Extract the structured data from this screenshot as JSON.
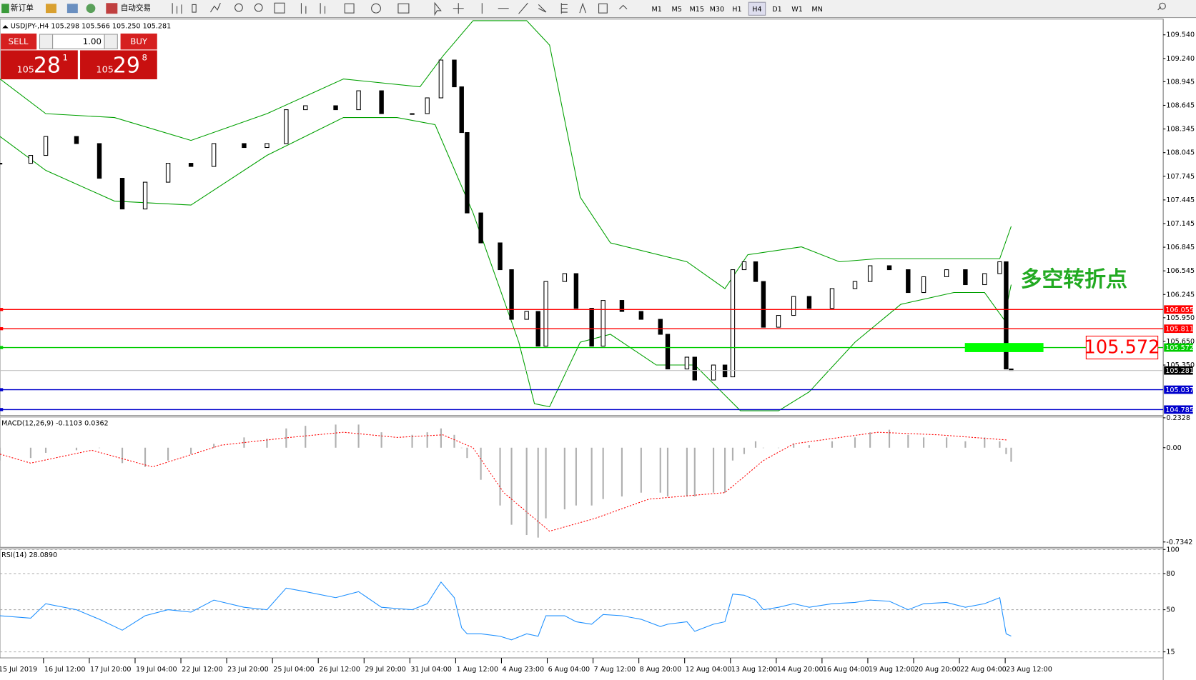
{
  "toolbar": {
    "new_order": "新订单",
    "auto_trading": "自动交易",
    "timeframes": [
      "M1",
      "M5",
      "M15",
      "M30",
      "H1",
      "H4",
      "D1",
      "W1",
      "MN"
    ],
    "active": "H4"
  },
  "trade_panel": {
    "sell": "SELL",
    "buy": "BUY",
    "lot": "1.00",
    "sell_big": "105",
    "sell_main": "28",
    "sell_sup": "1",
    "buy_big": "105",
    "buy_main": "29",
    "buy_sup": "8"
  },
  "chart_data": [
    {
      "type": "candlestick",
      "title": "USDJPY-,H4 105.298 105.566 105.250 105.281",
      "x": [
        0,
        6.7,
        10,
        16.7,
        21.7,
        26.7,
        31.7,
        36.7,
        41.7,
        46.7,
        53.3,
        58.3,
        62.5,
        66.7,
        73.3,
        78.3,
        83.3,
        90,
        93.3,
        96.3,
        99.2,
        100.8,
        102,
        105,
        109.2,
        111.7,
        115,
        117.5,
        119.2,
        123.3,
        125.8,
        129.2,
        131.7,
        135.8,
        140,
        144.2,
        145.8,
        150,
        151.7,
        155.8,
        158.3,
        160,
        162.5,
        165,
        166.7,
        170,
        173.3,
        176.7,
        181.7,
        186.7,
        190,
        194.2,
        198.3,
        201.7,
        206.7,
        210.8,
        215,
        218.3,
        219.7,
        220.8
      ],
      "close": [
        107.91,
        108.01,
        108.25,
        108.16,
        107.72,
        107.33,
        107.67,
        107.91,
        107.87,
        108.16,
        108.11,
        108.16,
        108.59,
        108.64,
        108.59,
        108.83,
        108.54,
        108.54,
        108.74,
        109.22,
        108.88,
        108.3,
        107.28,
        106.9,
        106.56,
        105.93,
        106.03,
        105.59,
        106.41,
        106.51,
        106.07,
        105.59,
        106.17,
        106.03,
        105.93,
        105.74,
        105.3,
        105.45,
        105.16,
        105.35,
        105.2,
        106.56,
        106.66,
        106.41,
        105.83,
        105.98,
        106.22,
        106.07,
        106.32,
        106.41,
        106.61,
        106.56,
        106.27,
        106.47,
        106.56,
        106.37,
        106.51,
        106.66,
        105.3,
        105.281
      ],
      "bands": [
        {
          "color": "#00a000",
          "x": [
            0,
            10,
            25,
            41.7,
            58.3,
            75,
            91.7,
            96.7,
            103.3,
            115,
            120,
            126.7,
            133.3,
            150,
            158.3,
            163.3,
            175,
            183.3,
            191.7,
            208.3,
            218.3,
            220.8
          ],
          "values": [
            108.98,
            108.54,
            108.49,
            108.2,
            108.54,
            108.98,
            108.88,
            109.27,
            109.72,
            109.72,
            109.41,
            107.48,
            106.9,
            106.66,
            106.32,
            106.75,
            106.85,
            106.66,
            106.7,
            106.7,
            106.7,
            107.11
          ]
        },
        {
          "color": "#00a000",
          "x": [
            0,
            10,
            25,
            41.7,
            58.3,
            75,
            86.7,
            95,
            103.3,
            113.3,
            116.7,
            120,
            126.7,
            133.3,
            143.3,
            151.7,
            161.7,
            170,
            176.7,
            186.7,
            196.7,
            208.3,
            215,
            219.2,
            220.8
          ],
          "values": [
            108.25,
            107.82,
            107.43,
            107.38,
            108.01,
            108.49,
            108.49,
            108.4,
            107.28,
            105.64,
            104.86,
            104.82,
            105.64,
            105.74,
            105.35,
            105.35,
            104.77,
            104.77,
            105.01,
            105.64,
            106.12,
            106.27,
            106.27,
            105.93,
            106.37
          ]
        }
      ],
      "ylim": [
        104.71,
        109.74
      ],
      "xlim": [
        0,
        254
      ],
      "yticks": [
        {
          "value": 109.54,
          "label": "109.540"
        },
        {
          "value": 109.24,
          "label": "109.240"
        },
        {
          "value": 108.945,
          "label": "108.945"
        },
        {
          "value": 108.645,
          "label": "108.645"
        },
        {
          "value": 108.345,
          "label": "108.345"
        },
        {
          "value": 108.045,
          "label": "108.045"
        },
        {
          "value": 107.745,
          "label": "107.745"
        },
        {
          "value": 107.445,
          "label": "107.445"
        },
        {
          "value": 107.145,
          "label": "107.145"
        },
        {
          "value": 106.845,
          "label": "106.845"
        },
        {
          "value": 106.545,
          "label": "106.545"
        },
        {
          "value": 106.245,
          "label": "106.245"
        },
        {
          "value": 105.95,
          "label": "105.950"
        },
        {
          "value": 105.65,
          "label": "105.650"
        },
        {
          "value": 105.35,
          "label": "105.350"
        }
      ],
      "levels": [
        {
          "value": 106.055,
          "label": "106.055",
          "color": "#ff0000"
        },
        {
          "value": 105.811,
          "label": "105.811",
          "color": "#ff0000"
        },
        {
          "value": 105.572,
          "label": "105.572",
          "color": "#00cc00"
        },
        {
          "value": 105.281,
          "label": "105.281",
          "color": "#000000"
        },
        {
          "value": 105.037,
          "label": "105.037",
          "color": "#0000cc"
        },
        {
          "value": 104.785,
          "label": "104.785",
          "color": "#0000cc"
        }
      ],
      "annotation": "多空转折点",
      "marker": {
        "value": 105.572,
        "label": "105.572",
        "color": "#00ff00"
      }
    },
    {
      "type": "macd",
      "title": "MACD(12,26,9) -0.1103 0.0362",
      "x": [
        0,
        6.7,
        10,
        16.7,
        21.7,
        26.7,
        31.7,
        36.7,
        41.7,
        46.7,
        53.3,
        58.3,
        62.5,
        66.7,
        73.3,
        78.3,
        83.3,
        90,
        93.3,
        96.3,
        99.2,
        100.8,
        102,
        105,
        109.2,
        111.7,
        115,
        117.5,
        119.2,
        123.3,
        125.8,
        129.2,
        131.7,
        135.8,
        140,
        144.2,
        145.8,
        150,
        151.7,
        155.8,
        158.3,
        160,
        162.5,
        165,
        166.7,
        170,
        173.3,
        176.7,
        181.7,
        186.7,
        190,
        194.2,
        198.3,
        201.7,
        206.7,
        210.8,
        215,
        218.3,
        219.7,
        220.8
      ],
      "values": [
        -0.1,
        -0.08,
        -0.04,
        -0.02,
        0.0,
        -0.12,
        -0.15,
        -0.1,
        -0.05,
        0.03,
        0.08,
        0.07,
        0.15,
        0.17,
        0.18,
        0.18,
        0.12,
        0.1,
        0.12,
        0.15,
        0.1,
        0.0,
        -0.08,
        -0.25,
        -0.45,
        -0.6,
        -0.68,
        -0.7,
        -0.55,
        -0.48,
        -0.45,
        -0.45,
        -0.4,
        -0.38,
        -0.35,
        -0.35,
        -0.38,
        -0.38,
        -0.38,
        -0.35,
        -0.35,
        -0.1,
        -0.05,
        0.05,
        0.0,
        0.0,
        0.03,
        0.02,
        0.05,
        0.08,
        0.12,
        0.14,
        0.1,
        0.08,
        0.08,
        0.05,
        0.08,
        0.05,
        -0.05,
        -0.11
      ],
      "signal": {
        "color": "#ff0000",
        "x": [
          0,
          6.7,
          20,
          33.3,
          48.3,
          63.3,
          75,
          86.7,
          96.7,
          103.3,
          110,
          120,
          130,
          141.7,
          158.3,
          166.7,
          173.3,
          191.7,
          205,
          220
        ],
        "values": [
          -0.05,
          -0.12,
          -0.02,
          -0.15,
          0.02,
          0.08,
          0.12,
          0.08,
          0.1,
          0.0,
          -0.35,
          -0.65,
          -0.55,
          -0.4,
          -0.35,
          -0.1,
          0.03,
          0.12,
          0.1,
          0.06
        ]
      },
      "color": "#b0b0b0",
      "ylim": [
        -0.776,
        0.239
      ],
      "xlim": [
        0,
        254
      ],
      "yticks": [
        0.2328,
        {
          "value": 0,
          "label": "0.00"
        },
        -0.7342
      ]
    },
    {
      "type": "line",
      "title": "RSI(14) 28.0890",
      "color": "#1e90ff",
      "x": [
        0,
        6.7,
        10,
        16.7,
        21.7,
        26.7,
        31.7,
        36.7,
        41.7,
        46.7,
        53.3,
        58.3,
        62.5,
        66.7,
        73.3,
        78.3,
        83.3,
        90,
        93.3,
        96.3,
        99.2,
        100.8,
        102,
        105,
        109.2,
        111.7,
        115,
        117.5,
        119.2,
        123.3,
        125.8,
        129.2,
        131.7,
        135.8,
        140,
        144.2,
        145.8,
        150,
        151.7,
        155.8,
        158.3,
        160,
        162.5,
        165,
        166.7,
        170,
        173.3,
        176.7,
        181.7,
        186.7,
        190,
        194.2,
        198.3,
        201.7,
        206.7,
        210.8,
        215,
        218.3,
        219.7,
        220.8
      ],
      "values": [
        45,
        43,
        55,
        50,
        42,
        33,
        45,
        50,
        48,
        58,
        52,
        50,
        68,
        65,
        60,
        65,
        52,
        50,
        55,
        73,
        60,
        35,
        30,
        30,
        28,
        25,
        30,
        28,
        45,
        45,
        40,
        38,
        46,
        45,
        42,
        36,
        38,
        40,
        32,
        38,
        40,
        63,
        62,
        58,
        50,
        52,
        55,
        52,
        55,
        56,
        58,
        57,
        50,
        55,
        56,
        52,
        55,
        60,
        30,
        28.089
      ],
      "ylim": [
        10,
        100.5
      ],
      "xlim": [
        0,
        254
      ],
      "yticks": [
        100,
        80,
        50,
        15
      ],
      "grid": true,
      "xticks": [
        {
          "value": -0.5,
          "label": "15 Jul 2019"
        },
        {
          "value": 9.5,
          "label": "16 Jul 12:00"
        },
        {
          "value": 19.5,
          "label": "17 Jul 20:00"
        },
        {
          "value": 29.5,
          "label": "19 Jul 04:00"
        },
        {
          "value": 39.5,
          "label": "22 Jul 12:00"
        },
        {
          "value": 49.5,
          "label": "23 Jul 20:00"
        },
        {
          "value": 59.5,
          "label": "25 Jul 04:00"
        },
        {
          "value": 69.5,
          "label": "26 Jul 12:00"
        },
        {
          "value": 79.5,
          "label": "29 Jul 20:00"
        },
        {
          "value": 89.5,
          "label": "31 Jul 04:00"
        },
        {
          "value": 99.5,
          "label": "1 Aug 12:00"
        },
        {
          "value": 109.5,
          "label": "4 Aug 23:00"
        },
        {
          "value": 119.5,
          "label": "6 Aug 04:00"
        },
        {
          "value": 129.5,
          "label": "7 Aug 12:00"
        },
        {
          "value": 139.5,
          "label": "8 Aug 20:00"
        },
        {
          "value": 149.5,
          "label": "12 Aug 04:00"
        },
        {
          "value": 159.5,
          "label": "13 Aug 12:00"
        },
        {
          "value": 169.5,
          "label": "14 Aug 20:00"
        },
        {
          "value": 179.5,
          "label": "16 Aug 04:00"
        },
        {
          "value": 189.5,
          "label": "19 Aug 12:00"
        },
        {
          "value": 199.5,
          "label": "20 Aug 20:00"
        },
        {
          "value": 209.5,
          "label": "22 Aug 04:00"
        },
        {
          "value": 219.5,
          "label": "23 Aug 12:00"
        }
      ]
    }
  ]
}
